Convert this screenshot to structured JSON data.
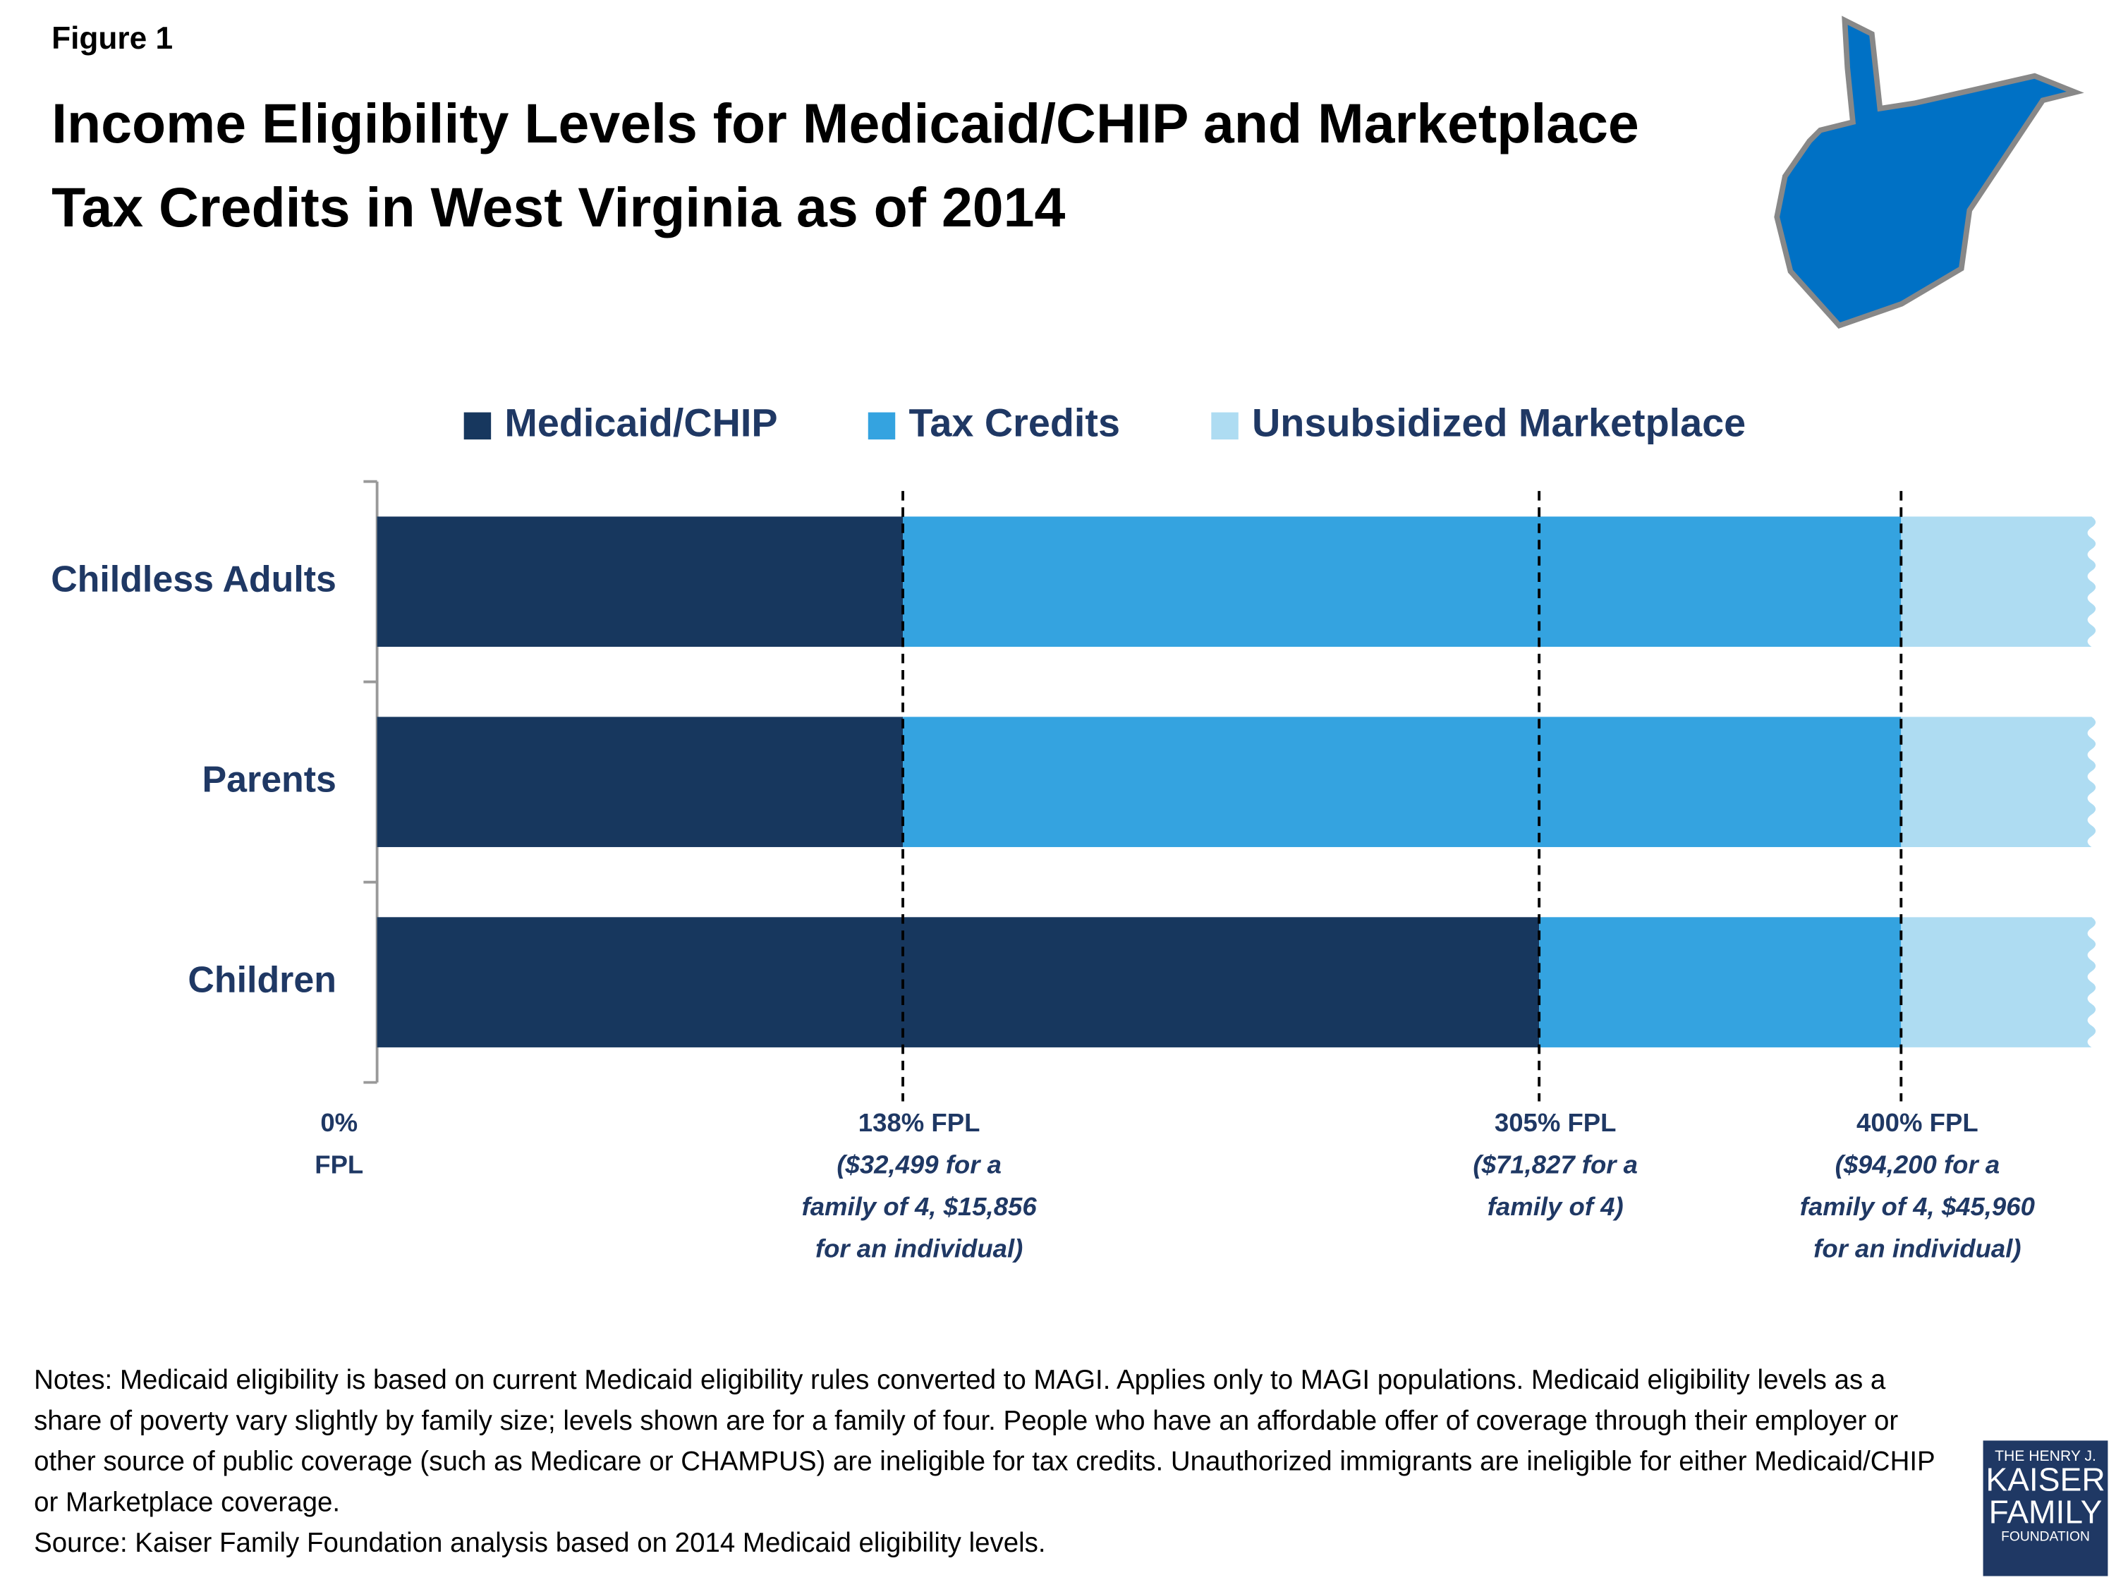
{
  "figure_label": "Figure 1",
  "chart_data": {
    "type": "stacked-barh",
    "title": "Income Eligibility Levels for Medicaid/CHIP and Marketplace Tax Credits in West Virginia as of 2014",
    "categories": [
      "Childless Adults",
      "Parents",
      "Children"
    ],
    "series": [
      {
        "name": "Medicaid/CHIP",
        "color": "#17375e",
        "values": [
          138,
          138,
          305
        ]
      },
      {
        "name": "Tax Credits",
        "color": "#34a3e0",
        "values": [
          262,
          262,
          95
        ]
      },
      {
        "name": "Unsubsidized Marketplace",
        "color": "#aedcf2",
        "values": [
          50,
          50,
          50
        ]
      }
    ],
    "xlim": [
      0,
      450
    ],
    "xticks": [
      {
        "value": 0,
        "label": "0% FPL"
      },
      {
        "value": 138,
        "label": "138% FPL",
        "note": "($32,499 for a family of 4, $15,856 for an individual)"
      },
      {
        "value": 305,
        "label": "305% FPL",
        "note": "($71,827 for a family of 4)"
      },
      {
        "value": 400,
        "label": "400% FPL",
        "note": "($94,200 for a family of 4, $45,960 for an individual)"
      }
    ],
    "legend": "top"
  },
  "notes": "Notes: Medicaid eligibility is based on current Medicaid eligibility rules converted to MAGI. Applies only to MAGI populations. Medicaid eligibility levels as a share of poverty vary slightly by family size; levels shown are for a family of four. People who have an affordable offer of coverage through their employer or other source of public coverage (such as Medicare or CHAMPUS) are ineligible for tax credits. Unauthorized immigrants are ineligible for either Medicaid/CHIP or Marketplace coverage.",
  "source": "Source: Kaiser Family Foundation analysis based on 2014 Medicaid eligibility levels.",
  "logo": [
    "THE HENRY J.",
    "KAISER",
    "FAMILY",
    "FOUNDATION"
  ]
}
